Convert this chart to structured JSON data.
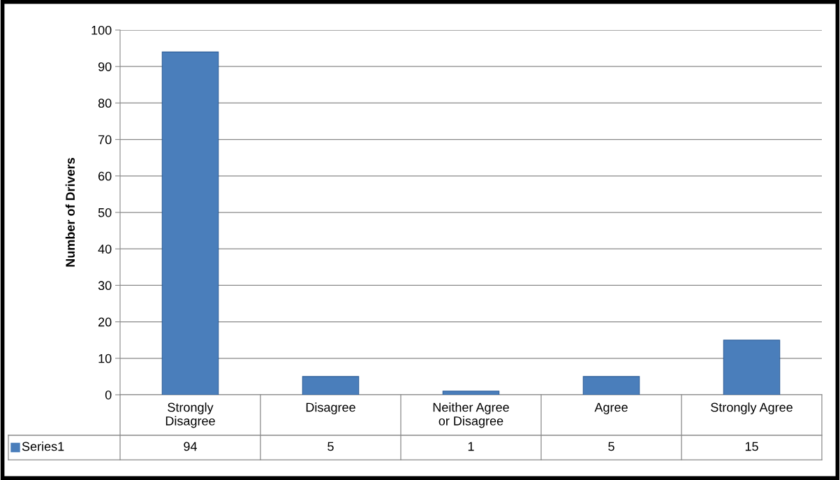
{
  "chart_data": {
    "type": "bar",
    "ylabel": "Number of Drivers",
    "categories": [
      "Strongly\nDisagree",
      "Disagree",
      "Neither Agree\nor Disagree",
      "Agree",
      "Strongly Agree"
    ],
    "series": [
      {
        "name": "Series1",
        "color": "#4a7ebb",
        "values": [
          94,
          5,
          1,
          5,
          15
        ]
      }
    ],
    "ylim": [
      0,
      100
    ],
    "yticks": [
      0,
      10,
      20,
      30,
      40,
      50,
      60,
      70,
      80,
      90,
      100
    ],
    "grid": "y",
    "data_labels": true
  }
}
